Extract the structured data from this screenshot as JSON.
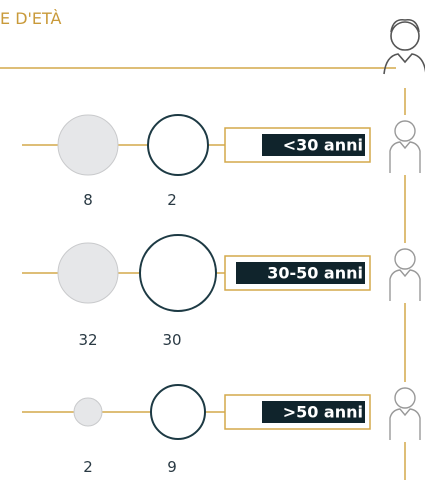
{
  "header": {
    "title": "E D'ETÀ"
  },
  "rows": [
    {
      "label": "<30 anni",
      "value_a": 8,
      "value_b": 2
    },
    {
      "label": "30-50 anni",
      "value_a": 32,
      "value_b": 30
    },
    {
      "label": ">50 anni",
      "value_a": 2,
      "value_b": 9
    }
  ]
}
